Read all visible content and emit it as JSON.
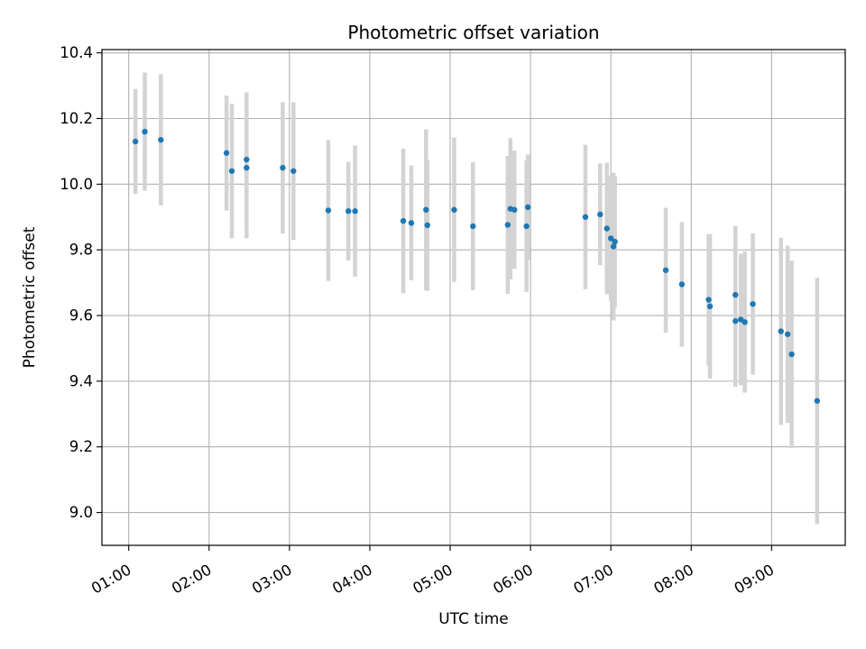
{
  "chart_data": {
    "type": "scatter",
    "title": "Photometric offset variation",
    "xlabel": "UTC time",
    "ylabel": "Photometric offset",
    "grid": true,
    "legend": "none",
    "x_format": "HH:MM",
    "xlim": [
      "00:40",
      "09:55"
    ],
    "ylim": [
      8.9,
      10.41
    ],
    "x_ticks": [
      "01:00",
      "02:00",
      "03:00",
      "04:00",
      "05:00",
      "06:00",
      "07:00",
      "08:00",
      "09:00"
    ],
    "y_ticks": [
      "9.0",
      "9.2",
      "9.4",
      "9.6",
      "9.8",
      "10.0",
      "10.2",
      "10.4"
    ],
    "colors": {
      "marker": "#1f77b4",
      "errorbar": "#d3d3d3",
      "grid": "#b0b0b0"
    },
    "series": [
      {
        "x": [
          "01:05",
          "01:12",
          "01:24",
          "02:13",
          "02:17",
          "02:28",
          "02:28",
          "02:55",
          "03:03",
          "03:29",
          "03:44",
          "03:49",
          "04:25",
          "04:31",
          "04:42",
          "04:43",
          "05:03",
          "05:17",
          "05:43",
          "05:45",
          "05:48",
          "05:57",
          "05:58",
          "06:41",
          "06:52",
          "06:57",
          "07:00",
          "07:02",
          "07:03",
          "07:41",
          "07:53",
          "08:13",
          "08:14",
          "08:33",
          "08:33",
          "08:37",
          "08:40",
          "08:46",
          "09:07",
          "09:12",
          "09:15",
          "09:34"
        ],
        "y": [
          10.13,
          10.16,
          10.135,
          10.095,
          10.04,
          10.05,
          10.075,
          10.05,
          10.04,
          9.92,
          9.918,
          9.918,
          9.888,
          9.882,
          9.922,
          9.875,
          9.922,
          9.872,
          9.876,
          9.925,
          9.922,
          9.872,
          9.93,
          9.9,
          9.908,
          9.865,
          9.835,
          9.81,
          9.825,
          9.738,
          9.695,
          9.648,
          9.628,
          9.663,
          9.583,
          9.588,
          9.58,
          9.635,
          9.552,
          9.543,
          9.482,
          9.34
        ],
        "err": [
          0.16,
          0.18,
          0.2,
          0.175,
          0.205,
          0.215,
          0.205,
          0.2,
          0.21,
          0.215,
          0.15,
          0.2,
          0.22,
          0.175,
          0.245,
          0.2,
          0.22,
          0.195,
          0.21,
          0.215,
          0.18,
          0.2,
          0.16,
          0.22,
          0.155,
          0.2,
          0.19,
          0.225,
          0.2,
          0.19,
          0.19,
          0.2,
          0.22,
          0.21,
          0.2,
          0.2,
          0.215,
          0.215,
          0.285,
          0.27,
          0.285,
          0.375
        ]
      }
    ]
  }
}
